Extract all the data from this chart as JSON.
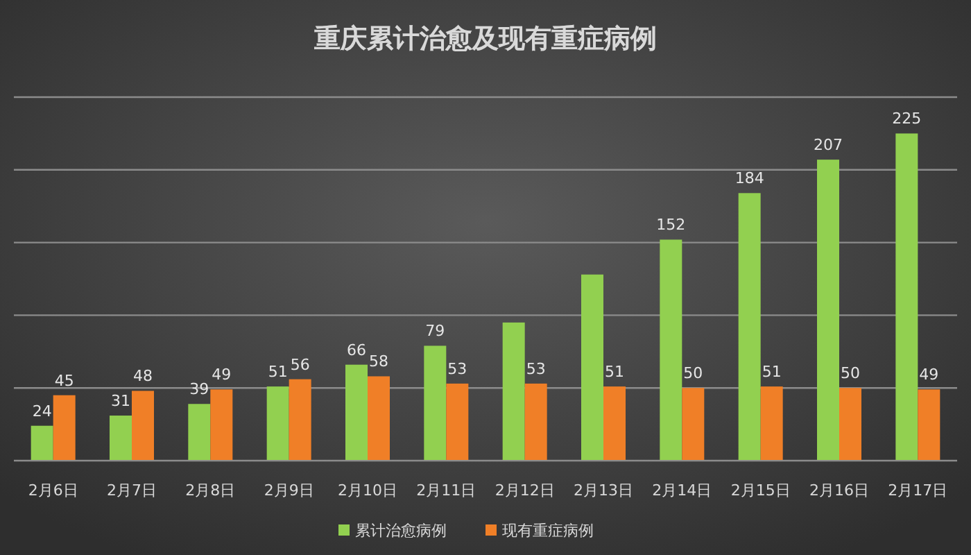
{
  "chart_data": {
    "type": "bar",
    "title": "重庆累计治愈及现有重症病例",
    "categories": [
      "2月6日",
      "2月7日",
      "2月8日",
      "2月9日",
      "2月10日",
      "2月11日",
      "2月12日",
      "2月13日",
      "2月14日",
      "2月15日",
      "2月16日",
      "2月17日"
    ],
    "series": [
      {
        "name": "累计治愈病例",
        "color": "#92d050",
        "values": [
          24,
          31,
          39,
          51,
          66,
          79,
          95,
          128,
          152,
          184,
          207,
          225
        ],
        "value_labels": [
          "24",
          "31",
          "39",
          "51",
          "66",
          "79",
          null,
          null,
          "152",
          "184",
          "207",
          "225"
        ]
      },
      {
        "name": "现有重症病例",
        "color": "#f07f27",
        "values": [
          45,
          48,
          49,
          56,
          58,
          53,
          53,
          51,
          50,
          51,
          50,
          49
        ],
        "value_labels": [
          "45",
          "48",
          "49",
          "56",
          "58",
          "53",
          "53",
          "51",
          "50",
          "51",
          "50",
          "49"
        ]
      }
    ],
    "ylim": [
      0,
      250
    ],
    "yticks": [
      {
        "value": 0,
        "label": null
      },
      {
        "value": 50,
        "label": null
      },
      {
        "value": 100,
        "label": null
      },
      {
        "value": 150,
        "label": null
      },
      {
        "value": 200,
        "label": null
      },
      {
        "value": 250,
        "label": null
      }
    ],
    "tick_labels": "x",
    "grid": "y",
    "legend": "bottom"
  }
}
